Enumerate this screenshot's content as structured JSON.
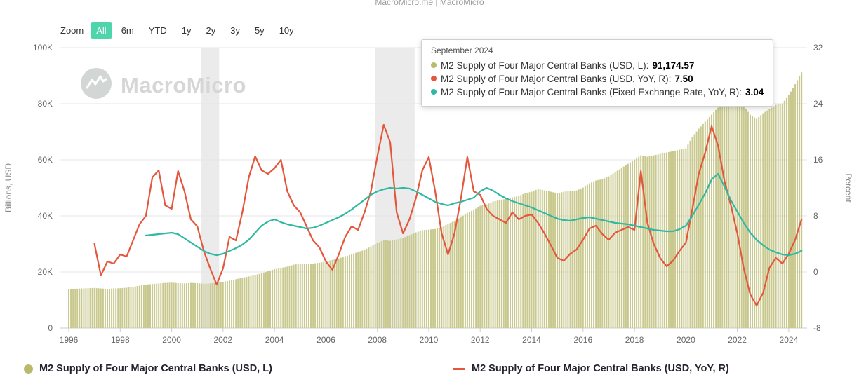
{
  "header": {
    "brand": "MacroMicro.me | MacroMicro"
  },
  "toolbar": {
    "zoom_label": "Zoom",
    "ranges": [
      "All",
      "6m",
      "YTD",
      "1y",
      "2y",
      "3y",
      "5y",
      "10y"
    ],
    "active": "All"
  },
  "watermark": {
    "text": "MacroMicro"
  },
  "tooltip": {
    "title": "September 2024",
    "items": [
      {
        "label": "M2 Supply of Four Major Central Banks (USD, L):",
        "value": "91,174.57",
        "color": "#b9ba6e"
      },
      {
        "label": "M2 Supply of Four Major Central Banks (USD, YoY, R):",
        "value": "7.50",
        "color": "#e4573d"
      },
      {
        "label": "M2 Supply of Four Major Central Banks (Fixed Exchange Rate, YoY, R):",
        "value": "3.04",
        "color": "#2fb8a2"
      }
    ]
  },
  "legend": [
    {
      "label": "M2 Supply of Four Major Central Banks (USD, L)",
      "marker": "circle",
      "color": "#b9ba6e"
    },
    {
      "label": "M2 Supply of Four Major Central Banks (USD, YoY, R)",
      "marker": "line",
      "color": "#e4573d"
    }
  ],
  "chart_data": {
    "type": "combo",
    "left_axis": {
      "title": "Billions, USD",
      "min": 0,
      "max": 100000,
      "tick_values": [
        0,
        20000,
        40000,
        60000,
        80000,
        100000
      ],
      "tick_labels": [
        "0",
        "20K",
        "40K",
        "60K",
        "80K",
        "100K"
      ]
    },
    "right_axis": {
      "title": "Percent",
      "min": -8,
      "max": 32,
      "tick_values": [
        -8,
        0,
        8,
        16,
        24,
        32
      ],
      "tick_labels": [
        "-8",
        "0",
        "8",
        "16",
        "24",
        "32"
      ]
    },
    "x_axis": {
      "tick_years": [
        1996,
        1998,
        2000,
        2002,
        2004,
        2006,
        2008,
        2010,
        2012,
        2014,
        2016,
        2018,
        2020,
        2022,
        2024
      ],
      "min": 1995.65,
      "max": 2024.72
    },
    "recession_bands": [
      [
        2001.15,
        2001.85
      ],
      [
        2007.92,
        2009.45
      ]
    ],
    "series": [
      {
        "name": "M2 Supply of Four Major Central Banks (USD, L)",
        "type": "bar",
        "axis": "left",
        "color": "#c9c98f",
        "start": 1996.0,
        "step": 0.25,
        "values": [
          13800,
          14000,
          14100,
          14200,
          14300,
          14100,
          14000,
          14100,
          14200,
          14400,
          14700,
          15100,
          15500,
          15700,
          15900,
          16100,
          16200,
          16000,
          15900,
          16100,
          16000,
          15800,
          15900,
          16300,
          16500,
          16900,
          17400,
          17900,
          18400,
          18900,
          19500,
          20300,
          21000,
          21400,
          21900,
          22600,
          23000,
          22900,
          23000,
          23300,
          23800,
          24300,
          24800,
          25600,
          26300,
          27100,
          27900,
          29100,
          30300,
          31300,
          31100,
          31600,
          32100,
          33100,
          34100,
          34900,
          35100,
          35300,
          36100,
          37100,
          38100,
          39600,
          41100,
          42100,
          43600,
          44100,
          45100,
          45600,
          46100,
          46600,
          47100,
          48100,
          48600,
          49600,
          49100,
          48600,
          48100,
          48600,
          48900,
          49100,
          50100,
          51600,
          52600,
          53100,
          54100,
          55600,
          57100,
          58600,
          60100,
          61600,
          61100,
          61600,
          62100,
          62600,
          63100,
          63600,
          64100,
          68100,
          71100,
          73600,
          76100,
          78600,
          80100,
          81100,
          81600,
          79100,
          76100,
          74600,
          76600,
          78100,
          79600,
          80100,
          83000,
          87000,
          91174
        ]
      },
      {
        "name": "M2 Supply of Four Major Central Banks (USD, YoY, R)",
        "type": "line",
        "axis": "right",
        "color": "#e4573d",
        "start": 1997.0,
        "step": 0.25,
        "values": [
          4,
          -0.5,
          1.5,
          1.2,
          2.5,
          2.2,
          4.5,
          6.8,
          8,
          13.5,
          14.5,
          9.5,
          9,
          14.4,
          11.5,
          7.5,
          6.5,
          3,
          0.5,
          -1.8,
          0.5,
          5,
          4.5,
          8.5,
          13.5,
          16.5,
          14.5,
          14,
          14.8,
          16,
          11.5,
          9.5,
          8.5,
          6.5,
          4.5,
          3.5,
          1.5,
          0.3,
          2.5,
          5,
          6.5,
          6,
          8.5,
          11.5,
          16.5,
          21,
          18.5,
          8.5,
          5.5,
          7.5,
          10.5,
          14.5,
          16.4,
          11.5,
          5.5,
          2.5,
          5.5,
          10.5,
          16.4,
          11.5,
          11,
          9,
          8,
          7.5,
          7,
          8.5,
          7.5,
          8,
          8.2,
          7,
          5.5,
          3.8,
          2,
          1.6,
          2.6,
          3.2,
          4.6,
          6.2,
          6.6,
          5.4,
          4.6,
          5.6,
          6,
          6.4,
          6,
          14.4,
          7,
          4,
          2,
          0.8,
          1.6,
          3,
          4.2,
          9,
          14,
          17,
          20.8,
          18,
          13,
          9.5,
          5.5,
          0.5,
          -3.2,
          -4.8,
          -3,
          0.6,
          2,
          1.2,
          2.6,
          4.6,
          7.5
        ]
      },
      {
        "name": "M2 Supply of Four Major Central Banks (Fixed Exchange Rate, YoY, R)",
        "type": "line",
        "axis": "right",
        "color": "#2fb8a2",
        "start": 1999.0,
        "step": 0.25,
        "values": [
          5.2,
          5.3,
          5.4,
          5.5,
          5.6,
          5.4,
          4.8,
          4.2,
          3.6,
          3,
          2.6,
          2.4,
          2.6,
          3,
          3.4,
          3.9,
          4.6,
          5.6,
          6.6,
          7.2,
          7.5,
          7.1,
          6.8,
          6.6,
          6.4,
          6.2,
          6.3,
          6.6,
          7,
          7.4,
          7.8,
          8.3,
          8.9,
          9.6,
          10.3,
          11,
          11.5,
          11.8,
          12,
          11.9,
          12,
          11.9,
          11.5,
          11,
          10.5,
          10,
          9.7,
          9.5,
          9.8,
          10,
          10.3,
          10.6,
          11.5,
          12,
          11.6,
          11,
          10.5,
          10.1,
          9.8,
          9.5,
          9.2,
          8.8,
          8.4,
          8,
          7.6,
          7.4,
          7.3,
          7.5,
          7.7,
          7.8,
          7.6,
          7.4,
          7.2,
          7,
          6.9,
          6.8,
          6.6,
          6.4,
          6.2,
          6,
          5.9,
          5.8,
          5.8,
          6.1,
          6.6,
          8,
          9.6,
          11.2,
          13.2,
          14,
          12.2,
          10.2,
          8.6,
          7,
          5.6,
          4.6,
          3.8,
          3.2,
          2.8,
          2.5,
          2.4,
          2.6,
          3.04
        ]
      }
    ]
  }
}
